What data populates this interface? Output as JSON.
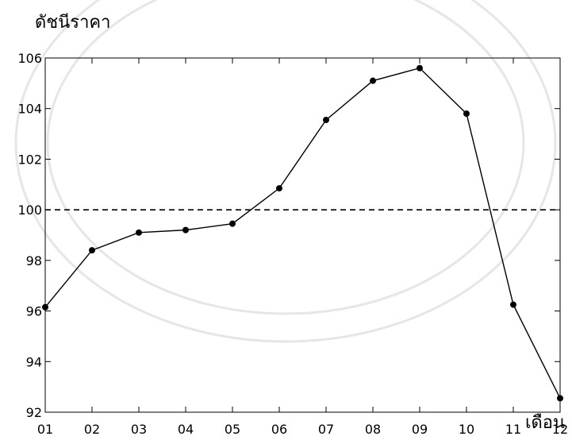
{
  "chart_data": {
    "type": "line",
    "title": "",
    "ylabel": "ดัชนีราคา",
    "xlabel": "เดือน",
    "categories": [
      "01",
      "02",
      "03",
      "04",
      "05",
      "06",
      "07",
      "08",
      "09",
      "10",
      "11",
      "12"
    ],
    "series": [
      {
        "values": [
          96.15,
          98.4,
          99.1,
          99.2,
          99.45,
          100.85,
          103.55,
          105.1,
          105.6,
          103.8,
          96.25,
          92.55
        ]
      }
    ],
    "reference_line": {
      "value": 100,
      "style": "dashed"
    },
    "ylim": [
      92,
      106
    ],
    "yticks": [
      92,
      94,
      96,
      98,
      100,
      102,
      104,
      106
    ],
    "grid": false,
    "line_color": "#000000",
    "marker_color": "#000000"
  }
}
